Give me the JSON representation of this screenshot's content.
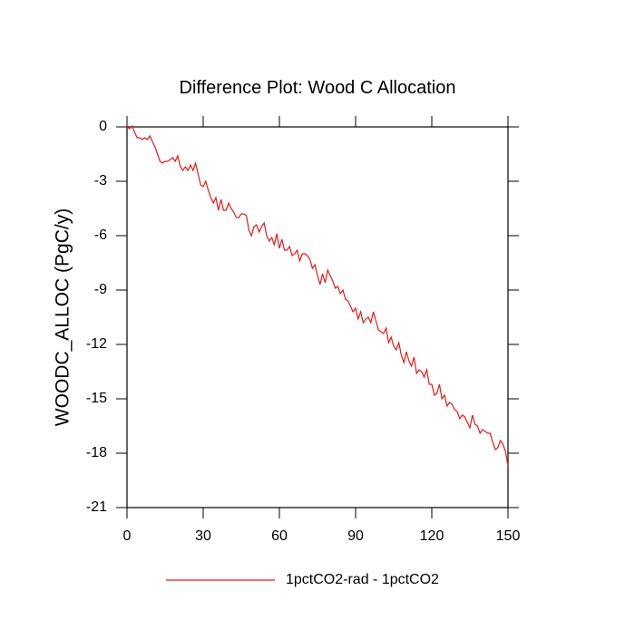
{
  "chart_data": {
    "type": "line",
    "title": "Difference Plot: Wood C Allocation",
    "y_label": "WOODC_ALLOC  (PgC/y)",
    "x": [
      0,
      1,
      2,
      3,
      4,
      5,
      6,
      7,
      8,
      9,
      10,
      11,
      12,
      13,
      14,
      15,
      16,
      17,
      18,
      19,
      20,
      21,
      22,
      23,
      24,
      25,
      26,
      27,
      28,
      29,
      30,
      31,
      32,
      33,
      34,
      35,
      36,
      37,
      38,
      39,
      40,
      41,
      42,
      43,
      44,
      45,
      46,
      47,
      48,
      49,
      50,
      51,
      52,
      53,
      54,
      55,
      56,
      57,
      58,
      59,
      60,
      61,
      62,
      63,
      64,
      65,
      66,
      67,
      68,
      69,
      70,
      71,
      72,
      73,
      74,
      75,
      76,
      77,
      78,
      79,
      80,
      81,
      82,
      83,
      84,
      85,
      86,
      87,
      88,
      89,
      90,
      91,
      92,
      93,
      94,
      95,
      96,
      97,
      98,
      99,
      100,
      101,
      102,
      103,
      104,
      105,
      106,
      107,
      108,
      109,
      110,
      111,
      112,
      113,
      114,
      115,
      116,
      117,
      118,
      119,
      120,
      121,
      122,
      123,
      124,
      125,
      126,
      127,
      128,
      129,
      130,
      131,
      132,
      133,
      134,
      135,
      136,
      137,
      138,
      139,
      140,
      141,
      142,
      143,
      144,
      145,
      146,
      147,
      148,
      149,
      150
    ],
    "series": [
      {
        "name": "1pctCO2-rad - 1pctCO2",
        "color": "#e41a1c",
        "values": [
          0,
          -0.1,
          0.05,
          -0.3,
          -0.6,
          -0.6,
          -0.7,
          -0.6,
          -0.7,
          -0.5,
          -0.8,
          -1.1,
          -1.5,
          -1.9,
          -2.0,
          -1.9,
          -1.9,
          -1.8,
          -1.7,
          -1.9,
          -1.6,
          -2.2,
          -2.4,
          -2.2,
          -2.4,
          -2.1,
          -2.4,
          -2.0,
          -2.6,
          -3.2,
          -3.3,
          -3.0,
          -3.5,
          -3.9,
          -4.2,
          -3.9,
          -4.6,
          -4.0,
          -4.6,
          -4.6,
          -4.2,
          -4.5,
          -4.7,
          -5.0,
          -5.0,
          -4.8,
          -4.8,
          -4.9,
          -5.7,
          -6.0,
          -5.5,
          -5.4,
          -5.8,
          -5.5,
          -5.3,
          -6.0,
          -6.3,
          -6.1,
          -6.5,
          -5.9,
          -6.7,
          -6.2,
          -6.8,
          -6.8,
          -6.6,
          -7.1,
          -7.0,
          -6.8,
          -7.4,
          -7.0,
          -7.0,
          -7.1,
          -7.3,
          -7.8,
          -7.6,
          -8.2,
          -8.7,
          -8.1,
          -8.6,
          -7.9,
          -8.2,
          -8.5,
          -8.9,
          -8.8,
          -9.2,
          -9.0,
          -9.5,
          -9.6,
          -9.9,
          -10.2,
          -10.0,
          -10.6,
          -10.2,
          -10.8,
          -10.6,
          -10.5,
          -10.8,
          -10.2,
          -10.7,
          -11.2,
          -11.3,
          -11.4,
          -11.1,
          -11.9,
          -11.6,
          -12.1,
          -12.3,
          -11.9,
          -12.6,
          -13.0,
          -12.4,
          -12.9,
          -13.2,
          -12.7,
          -13.6,
          -13.4,
          -13.5,
          -13.8,
          -13.4,
          -14.2,
          -14.2,
          -14.8,
          -14.7,
          -14.2,
          -15.0,
          -14.8,
          -15.4,
          -15.2,
          -15.3,
          -15.6,
          -15.7,
          -16.1,
          -15.9,
          -16.0,
          -16.3,
          -16.6,
          -15.9,
          -16.4,
          -16.5,
          -16.9,
          -16.7,
          -16.8,
          -16.9,
          -16.9,
          -17.4,
          -17.8,
          -17.7,
          -17.3,
          -17.5,
          -17.9,
          -18.7
        ]
      }
    ],
    "xlim": [
      0,
      150
    ],
    "xticks": [
      0,
      30,
      60,
      90,
      120,
      150
    ],
    "ylim": [
      -21,
      0
    ],
    "yticks": [
      0,
      -3,
      -6,
      -9,
      -12,
      -15,
      -18,
      -21
    ]
  }
}
